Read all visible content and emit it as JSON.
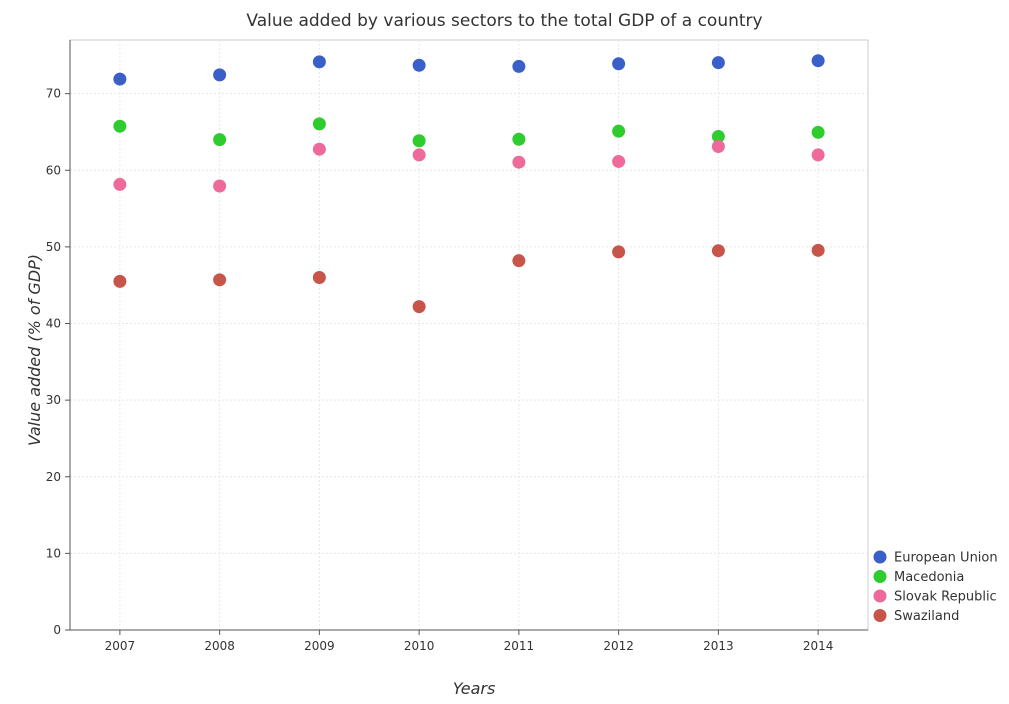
{
  "chart_data": {
    "type": "scatter",
    "title": "Value added by various sectors to the total GDP of a country",
    "xlabel": "Years",
    "ylabel": "Value added (% of GDP)",
    "x": [
      "2007",
      "2008",
      "2009",
      "2010",
      "2011",
      "2012",
      "2013",
      "2014"
    ],
    "ylim": [
      0,
      77
    ],
    "yticks": [
      0,
      10,
      20,
      30,
      40,
      50,
      60,
      70
    ],
    "grid": true,
    "legend_position": "bottom-right",
    "series": [
      {
        "name": "European Union",
        "color": "#3a5fc8",
        "values": [
          71.9,
          72.45,
          74.15,
          73.7,
          73.55,
          73.9,
          74.05,
          74.3
        ]
      },
      {
        "name": "Macedonia",
        "color": "#2fcc2f",
        "values": [
          65.75,
          64.0,
          66.05,
          63.85,
          64.05,
          65.1,
          64.4,
          64.95
        ]
      },
      {
        "name": "Slovak Republic",
        "color": "#ee6a9a",
        "values": [
          58.15,
          57.95,
          62.75,
          62.0,
          61.05,
          61.15,
          63.1,
          62.0
        ]
      },
      {
        "name": "Swaziland",
        "color": "#c8554a",
        "values": [
          45.5,
          45.7,
          46.0,
          42.2,
          48.2,
          49.35,
          49.5,
          49.55
        ]
      }
    ]
  }
}
